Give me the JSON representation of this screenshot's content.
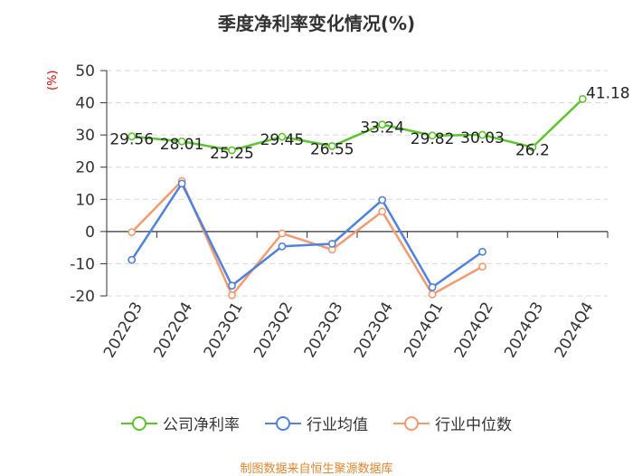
{
  "chart_data": {
    "type": "line",
    "title": "季度净利率变化情况(%)",
    "ylabel": "(%)",
    "categories": [
      "2022Q3",
      "2022Q4",
      "2023Q1",
      "2023Q2",
      "2023Q3",
      "2023Q4",
      "2024Q1",
      "2024Q2",
      "2024Q3",
      "2024Q4"
    ],
    "yticks": [
      50,
      40,
      30,
      20,
      10,
      0,
      -10,
      -20
    ],
    "ylim": [
      -20,
      50
    ],
    "grid": true,
    "legend_position": "bottom",
    "series": [
      {
        "name": "公司净利率",
        "color": "#5cc52d",
        "values": [
          29.56,
          28.01,
          25.25,
          29.45,
          26.55,
          33.24,
          29.82,
          30.03,
          26.2,
          41.18
        ],
        "labels": [
          "29.56",
          "28.01",
          "25.25",
          "29.45",
          "26.55",
          "33.24",
          "29.82",
          "30.03",
          "26.2",
          "41.18"
        ]
      },
      {
        "name": "行业均值",
        "color": "#4f81e0",
        "values": [
          -8.8,
          14.9,
          -16.8,
          -4.6,
          -3.8,
          9.8,
          -17.3,
          -6.3,
          null,
          null
        ]
      },
      {
        "name": "行业中位数",
        "color": "#f59a6e",
        "values": [
          -0.2,
          15.7,
          -19.8,
          -0.6,
          -5.6,
          6.2,
          -19.5,
          -10.9,
          null,
          null
        ]
      }
    ]
  },
  "source": "制图数据来自恒生聚源数据库"
}
